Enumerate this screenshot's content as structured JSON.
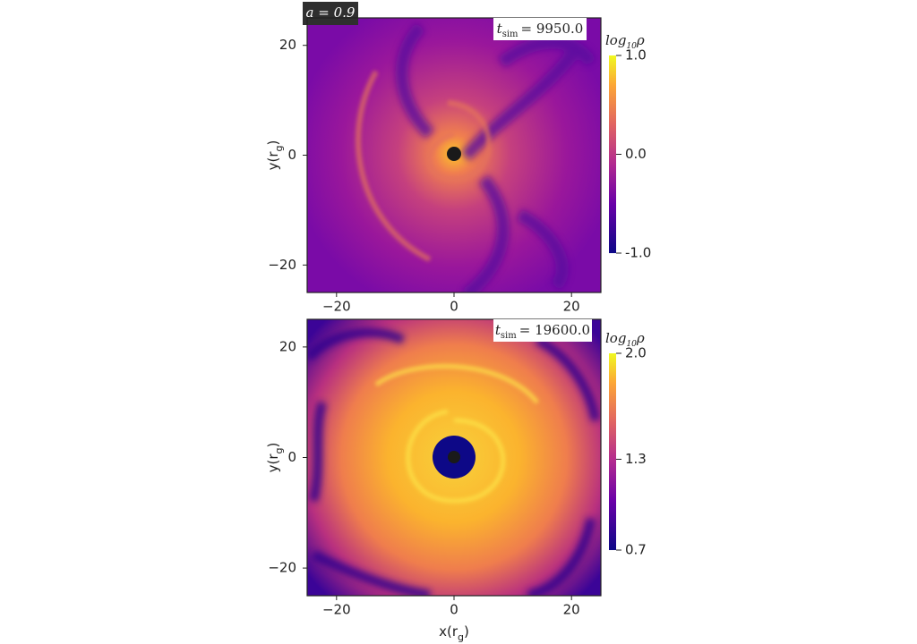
{
  "chart_data": [
    {
      "type": "heatmap",
      "annotations": {
        "spin": "a = 0.9",
        "time": {
          "symbol": "t",
          "subscript": "sim",
          "value": "= 9950.0"
        }
      },
      "xlim": [
        -25,
        25
      ],
      "ylim": [
        -25,
        25
      ],
      "xticks": [
        {
          "value": -20,
          "label": "−20"
        },
        0,
        20
      ],
      "yticks": [
        {
          "value": -20,
          "label": "−20"
        },
        0,
        20
      ],
      "ylabel": {
        "prefix": "y(r",
        "subscript": "g",
        "suffix": ")"
      },
      "colorbar": {
        "label": {
          "prefix": "log",
          "subscript": "10",
          "suffix": "ρ"
        },
        "lim": [
          -1,
          1
        ],
        "ticks": [
          {
            "value": -1,
            "label": "-1.0"
          },
          {
            "value": 0,
            "label": "0.0"
          },
          {
            "value": 1,
            "label": "1.0"
          }
        ]
      }
    },
    {
      "type": "heatmap",
      "annotations": {
        "time": {
          "symbol": "t",
          "subscript": "sim",
          "value": "= 19600.0"
        }
      },
      "xlim": [
        -25,
        25
      ],
      "ylim": [
        -25,
        25
      ],
      "xticks": [
        {
          "value": -20,
          "label": "−20"
        },
        0,
        20
      ],
      "yticks": [
        {
          "value": -20,
          "label": "−20"
        },
        0,
        20
      ],
      "xlabel": {
        "prefix": "x(r",
        "subscript": "g",
        "suffix": ")"
      },
      "ylabel": {
        "prefix": "y(r",
        "subscript": "g",
        "suffix": ")"
      },
      "colorbar": {
        "label": {
          "prefix": "log",
          "subscript": "10",
          "suffix": "ρ"
        },
        "lim": [
          0.7,
          2.0
        ],
        "ticks": [
          {
            "value": 0.7,
            "label": "0.7"
          },
          {
            "value": 1.3,
            "label": "1.3"
          },
          {
            "value": 2.0,
            "label": "2.0"
          }
        ]
      }
    }
  ]
}
